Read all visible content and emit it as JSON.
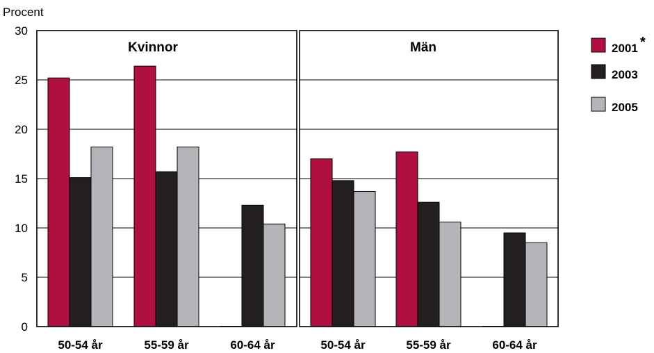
{
  "chart_data": {
    "type": "bar",
    "ylabel": "Procent",
    "ylim": [
      0,
      30
    ],
    "yticks": [
      "0",
      "5",
      "10",
      "15",
      "20",
      "25",
      "30"
    ],
    "grid": true,
    "legend_position": "right",
    "categories": [
      "50-54 år",
      "55-59 år",
      "60-64 år"
    ],
    "series_names": [
      "2001",
      "2003",
      "2005"
    ],
    "legend_note": "*",
    "colors": {
      "2001": "#b01040",
      "2003": "#231f20",
      "2005": "#b4b5b8"
    },
    "panels": [
      {
        "title": "Kvinnor",
        "series": [
          {
            "name": "2001",
            "values": [
              25.2,
              26.4,
              null
            ]
          },
          {
            "name": "2003",
            "values": [
              15.1,
              15.7,
              12.3
            ]
          },
          {
            "name": "2005",
            "values": [
              18.2,
              18.2,
              10.4
            ]
          }
        ]
      },
      {
        "title": "Män",
        "series": [
          {
            "name": "2001",
            "values": [
              17.0,
              17.7,
              null
            ]
          },
          {
            "name": "2003",
            "values": [
              14.8,
              12.6,
              9.5
            ]
          },
          {
            "name": "2005",
            "values": [
              13.7,
              10.6,
              8.5
            ]
          }
        ]
      }
    ]
  }
}
